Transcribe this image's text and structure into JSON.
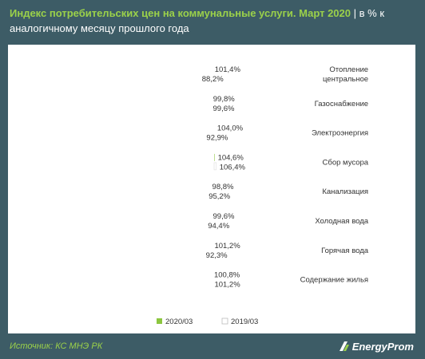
{
  "title": {
    "main": "Индекс потребительских цен на коммунальные услуги. Март 2020",
    "separator": "|",
    "unit": "в % к аналогичному месяцу прошлого года"
  },
  "source": "Источник: КС МНЭ РК",
  "logo_text": "EnergyProm",
  "colors": {
    "background": "#3d5c66",
    "accent": "#9bd14a",
    "series_2020": "#8cc63f",
    "series_2019": "#ffffff"
  },
  "chart_data": {
    "type": "bar",
    "orientation": "horizontal",
    "categories": [
      "Отопление центральное",
      "Газоснабжение",
      "Электроэнергия",
      "Сбор мусора",
      "Канализация",
      "Холодная вода",
      "Горячая вода",
      "Содержание жилья"
    ],
    "series": [
      {
        "name": "2020/03",
        "values": [
          101.4,
          99.8,
          104.0,
          104.6,
          98.8,
          99.6,
          101.2,
          100.8
        ],
        "labels": [
          "101,4%",
          "99,8%",
          "104,0%",
          "104,6%",
          "98,8%",
          "99,6%",
          "101,2%",
          "100,8%"
        ]
      },
      {
        "name": "2019/03",
        "values": [
          88.2,
          99.6,
          92.9,
          106.4,
          95.2,
          94.4,
          92.3,
          101.2
        ],
        "labels": [
          "88,2%",
          "99,6%",
          "92,9%",
          "106,4%",
          "95,2%",
          "94,4%",
          "92,3%",
          "101,2%"
        ]
      }
    ],
    "xlim": [
      0,
      110
    ],
    "grid": false,
    "legend_position": "bottom"
  }
}
